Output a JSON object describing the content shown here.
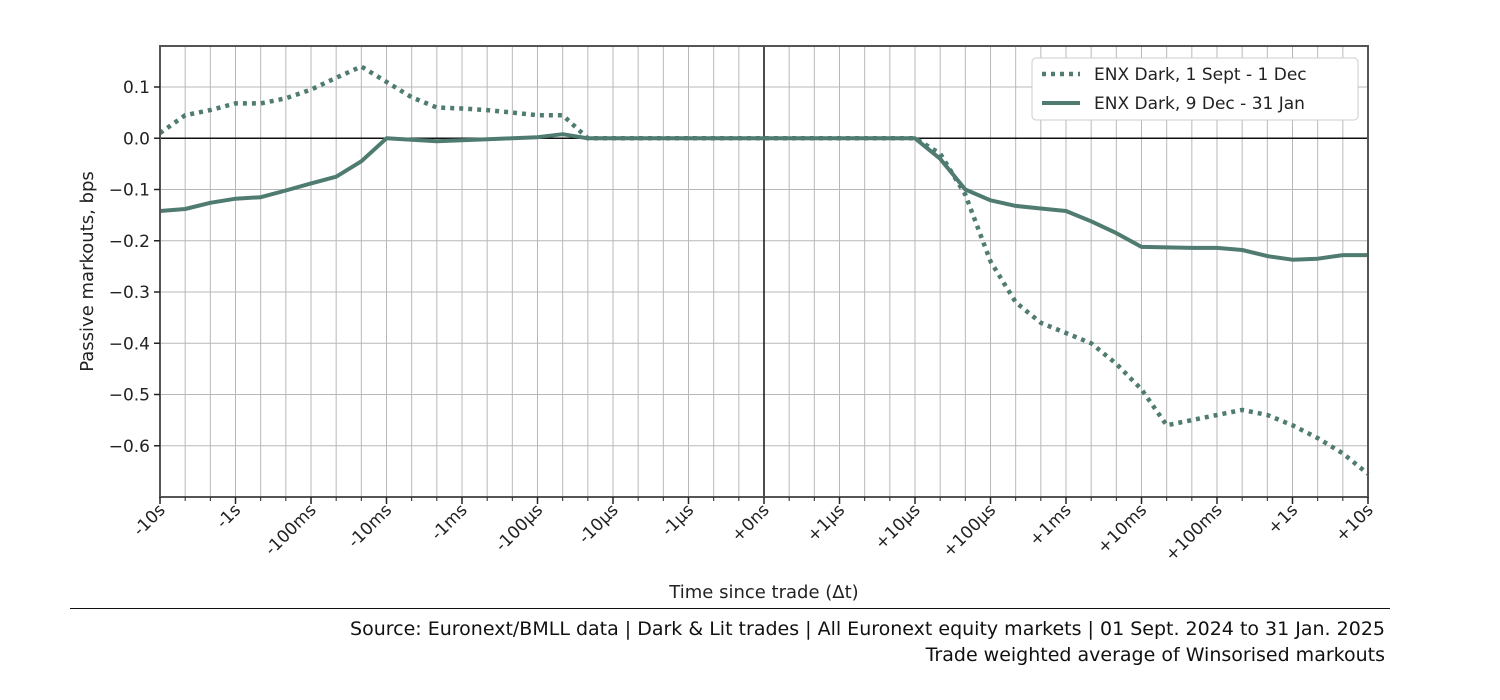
{
  "chart_data": {
    "type": "line",
    "xlabel": "Time since trade (Δt)",
    "ylabel": "Passive markouts, bps",
    "ylim": [
      -0.7,
      0.18
    ],
    "yticks": [
      0.1,
      0.0,
      -0.1,
      -0.2,
      -0.3,
      -0.4,
      -0.5,
      -0.6
    ],
    "ytick_labels": [
      "0.1",
      "0.0",
      "−0.1",
      "−0.2",
      "−0.3",
      "−0.4",
      "−0.5",
      "−0.6"
    ],
    "xrange": [
      0,
      48
    ],
    "x_tick_positions": [
      0,
      3,
      6,
      9,
      12,
      15,
      18,
      21,
      24,
      27,
      30,
      33,
      36,
      39,
      42,
      45,
      48
    ],
    "x_tick_labels": [
      "-10s",
      "-1s",
      "-100ms",
      "-10ms",
      "-1ms",
      "-100µs",
      "-10µs",
      "-1µs",
      "+0ns",
      "+1µs",
      "+10µs",
      "+100µs",
      "+1ms",
      "+10ms",
      "+100ms",
      "+1s",
      "+10s"
    ],
    "grid": true,
    "legend_position": "top-right",
    "series": [
      {
        "name": "ENX Dark, 1 Sept - 1 Dec",
        "style": "dotted",
        "x": [
          0,
          1,
          2,
          3,
          4,
          5,
          6,
          7,
          8,
          9,
          10,
          11,
          12,
          13,
          14,
          15,
          16,
          17,
          18,
          24,
          30,
          31,
          32,
          33,
          34,
          35,
          36,
          37,
          38,
          39,
          40,
          41,
          42,
          43,
          44,
          45,
          46,
          47,
          48
        ],
        "values": [
          0.01,
          0.045,
          0.055,
          0.068,
          0.068,
          0.078,
          0.095,
          0.118,
          0.14,
          0.11,
          0.08,
          0.06,
          0.058,
          0.055,
          0.05,
          0.045,
          0.045,
          0.0,
          0.0,
          0.0,
          0.0,
          -0.03,
          -0.11,
          -0.24,
          -0.32,
          -0.36,
          -0.38,
          -0.4,
          -0.44,
          -0.49,
          -0.56,
          -0.55,
          -0.54,
          -0.53,
          -0.54,
          -0.56,
          -0.585,
          -0.615,
          -0.655
        ]
      },
      {
        "name": "ENX Dark, 9 Dec - 31 Jan",
        "style": "solid",
        "x": [
          0,
          1,
          2,
          3,
          4,
          5,
          6,
          7,
          8,
          9,
          10,
          11,
          12,
          13,
          14,
          15,
          16,
          17,
          18,
          24,
          30,
          31,
          32,
          33,
          34,
          35,
          36,
          37,
          38,
          39,
          40,
          41,
          42,
          43,
          44,
          45,
          46,
          47,
          48
        ],
        "values": [
          -0.142,
          -0.138,
          -0.126,
          -0.118,
          -0.115,
          -0.102,
          -0.088,
          -0.075,
          -0.045,
          0.0,
          -0.003,
          -0.006,
          -0.004,
          -0.002,
          0.0,
          0.002,
          0.008,
          0.0,
          0.0,
          0.0,
          0.0,
          -0.04,
          -0.1,
          -0.121,
          -0.132,
          -0.137,
          -0.142,
          -0.162,
          -0.185,
          -0.212,
          -0.213,
          -0.214,
          -0.214,
          -0.218,
          -0.23,
          -0.237,
          -0.235,
          -0.228,
          -0.228
        ]
      }
    ],
    "colors": {
      "line": "#4f7b71",
      "frame": "#555555",
      "grid": "#b8b8b8",
      "zero": "#111111"
    }
  },
  "footer": {
    "source": "Source: Euronext/BMLL data | Dark & Lit trades | All Euronext equity markets | 01 Sept. 2024 to 31 Jan. 2025",
    "note": "Trade weighted average of Winsorised markouts"
  }
}
